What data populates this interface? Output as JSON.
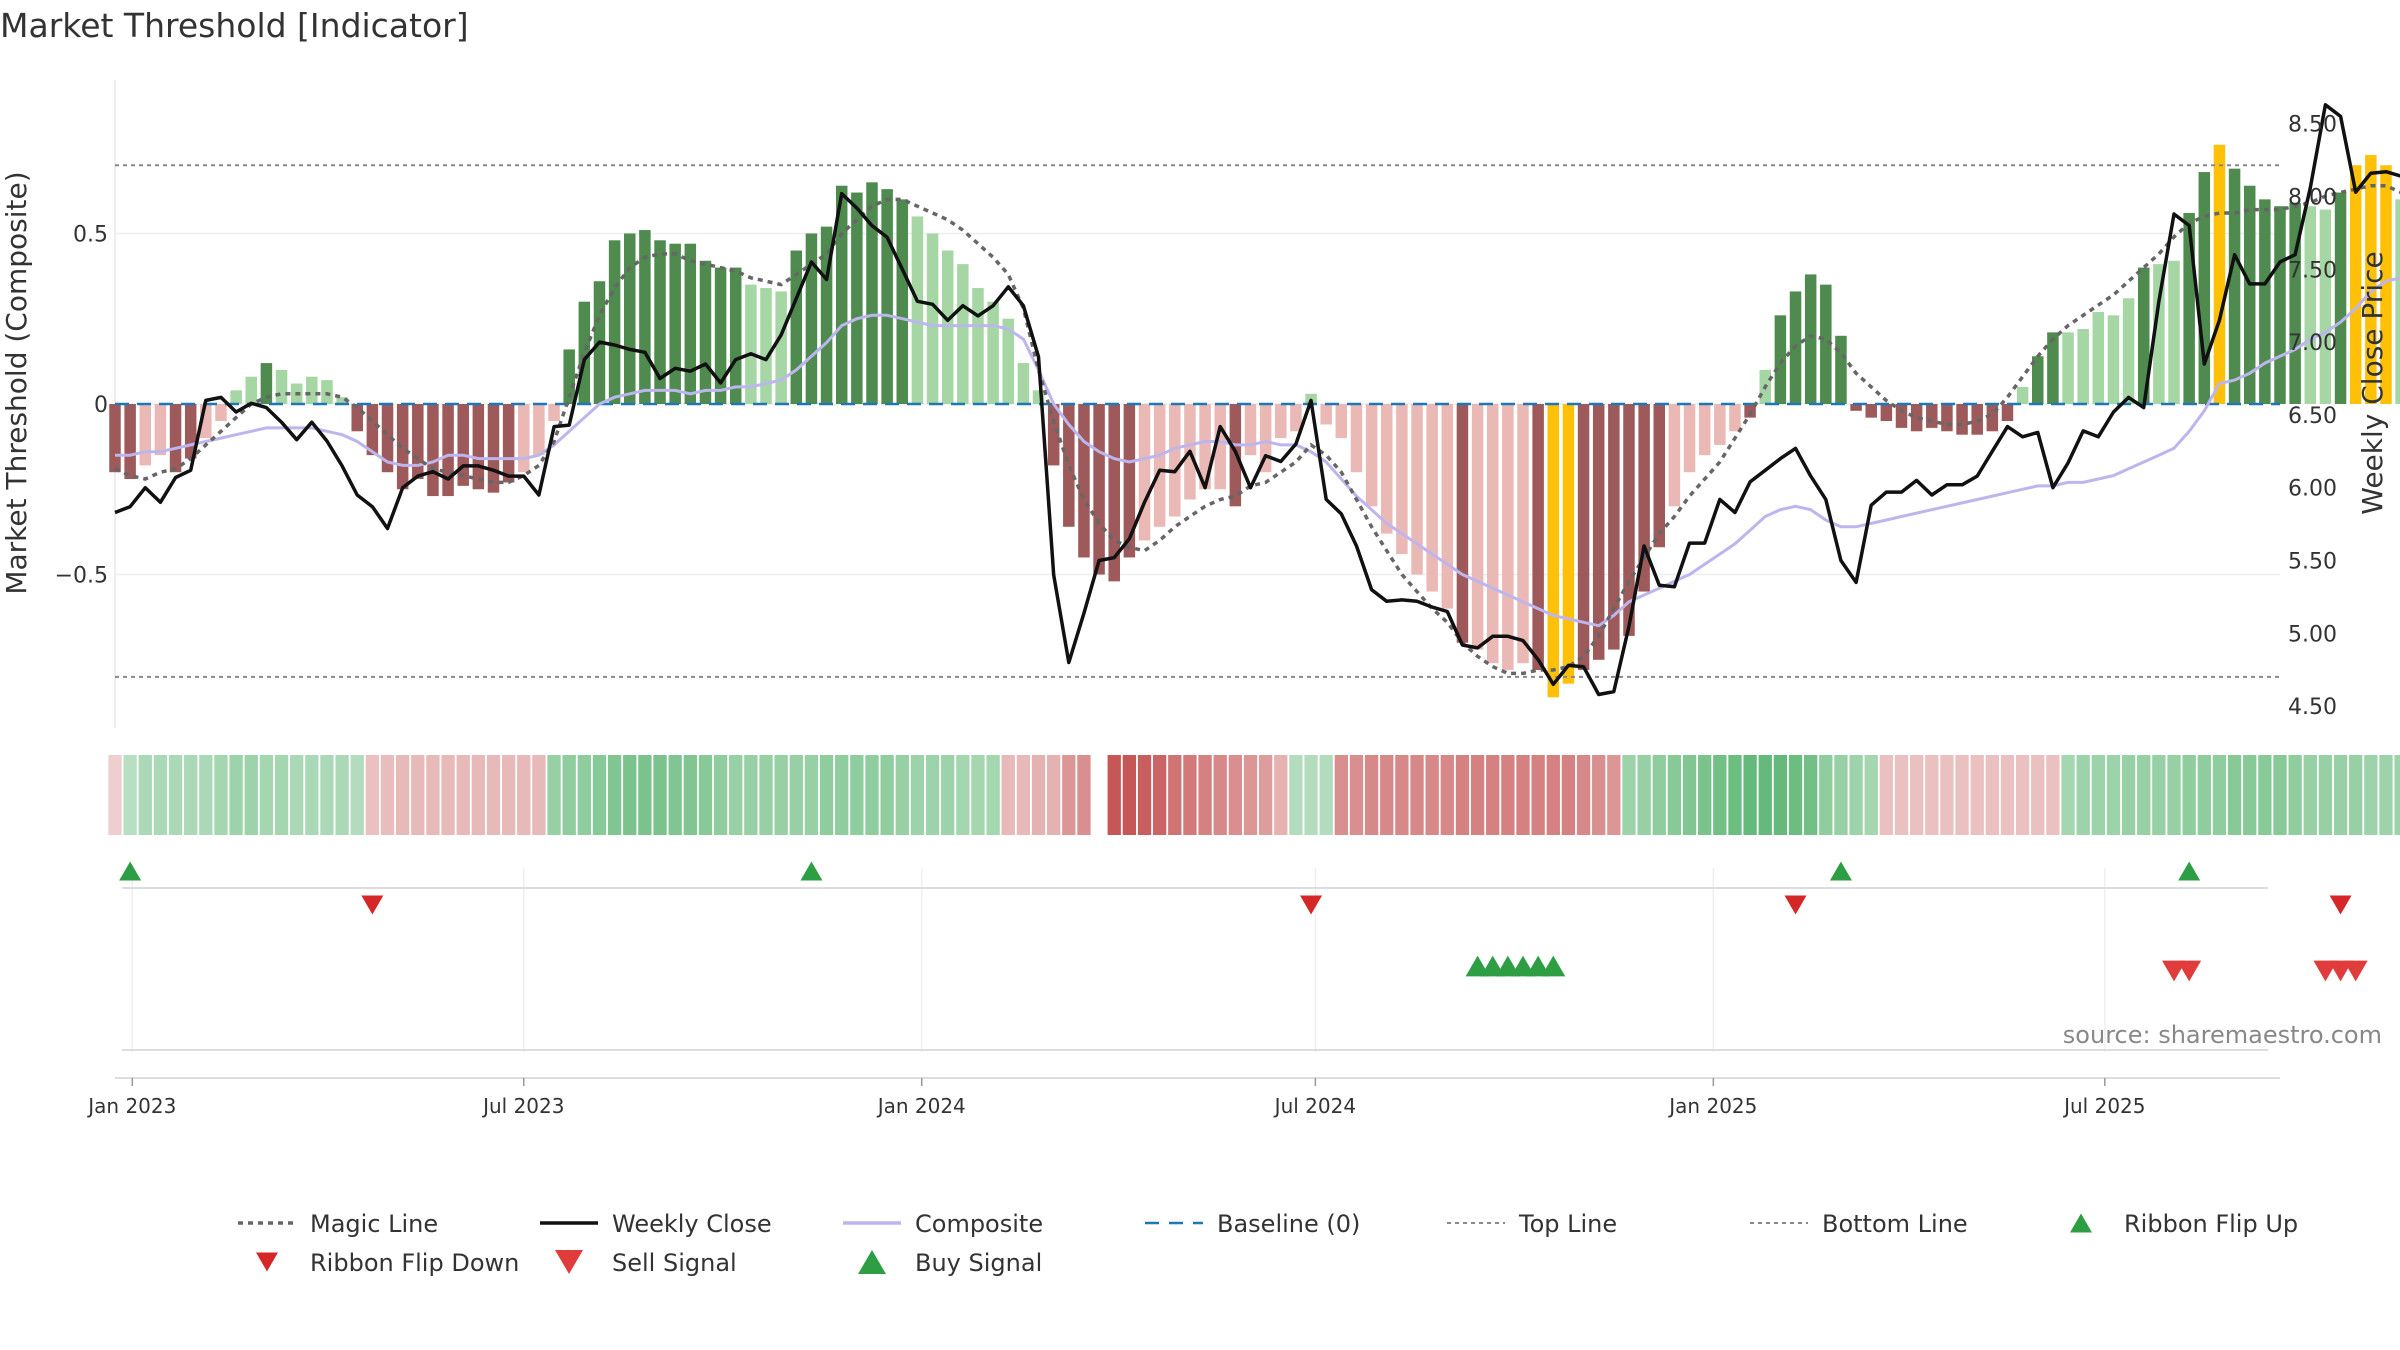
{
  "title": "Market Threshold [Indicator]",
  "source": "source: sharemaestro.com",
  "colors": {
    "pos_strong": "#4f8a4f",
    "pos_weak": "#a5d6a3",
    "neg_strong": "#9e5a5a",
    "neg_weak": "#ebb9b5",
    "extreme": "#ffc107",
    "close": "#111111",
    "magic": "#666666",
    "composite": "#bdb5ee",
    "baseline": "#1f77b4",
    "thresh": "#888888",
    "up": "#2e9e44",
    "down": "#d62728",
    "buy": "#2e9e44",
    "sell": "#e03c3c"
  },
  "chart_data": {
    "type": "bar",
    "title": "Market Threshold [Indicator]",
    "ylabel": "Market Threshold (Composite)",
    "y2label": "Weekly Close Price",
    "ylim": [
      -0.95,
      0.95
    ],
    "y2lim": [
      4.35,
      8.8
    ],
    "yticks": [
      {
        "v": 0.5,
        "t": "0.5"
      },
      {
        "v": 0,
        "t": "0"
      },
      {
        "v": -0.5,
        "t": "−0.5"
      }
    ],
    "y2ticks": [
      "4.50",
      "5.00",
      "5.50",
      "6.00",
      "6.50",
      "7.00",
      "7.50",
      "8.00",
      "8.50"
    ],
    "xlim": [
      "2022-12-24",
      "2025-09-20"
    ],
    "xticks": [
      {
        "date": "2023-01-01",
        "label": "Jan 2023"
      },
      {
        "date": "2023-07-01",
        "label": "Jul 2023"
      },
      {
        "date": "2024-01-01",
        "label": "Jan 2024"
      },
      {
        "date": "2024-07-01",
        "label": "Jul 2024"
      },
      {
        "date": "2025-01-01",
        "label": "Jan 2025"
      },
      {
        "date": "2025-07-01",
        "label": "Jul 2025"
      }
    ],
    "top_line": 0.7,
    "bottom_line": -0.8,
    "baseline": 0,
    "start_date": "2022-12-24",
    "composite_bars": [
      -0.2,
      -0.22,
      -0.18,
      -0.15,
      -0.2,
      -0.16,
      -0.1,
      -0.05,
      0.04,
      0.08,
      0.12,
      0.1,
      0.06,
      0.08,
      0.07,
      0.02,
      -0.08,
      -0.15,
      -0.2,
      -0.25,
      -0.22,
      -0.27,
      -0.27,
      -0.24,
      -0.25,
      -0.26,
      -0.23,
      -0.2,
      -0.15,
      -0.05,
      0.16,
      0.3,
      0.36,
      0.48,
      0.5,
      0.51,
      0.48,
      0.47,
      0.47,
      0.42,
      0.4,
      0.4,
      0.35,
      0.34,
      0.33,
      0.45,
      0.5,
      0.52,
      0.64,
      0.62,
      0.65,
      0.63,
      0.6,
      0.55,
      0.5,
      0.45,
      0.41,
      0.34,
      0.3,
      0.25,
      0.12,
      0.04,
      -0.18,
      -0.36,
      -0.45,
      -0.5,
      -0.52,
      -0.45,
      -0.4,
      -0.36,
      -0.33,
      -0.28,
      -0.25,
      -0.25,
      -0.3,
      -0.15,
      -0.2,
      -0.1,
      -0.08,
      0.03,
      -0.06,
      -0.1,
      -0.2,
      -0.3,
      -0.38,
      -0.44,
      -0.5,
      -0.55,
      -0.6,
      -0.7,
      -0.72,
      -0.76,
      -0.78,
      -0.76,
      -0.78,
      -0.86,
      -0.82,
      -0.78,
      -0.75,
      -0.72,
      -0.68,
      -0.55,
      -0.42,
      -0.3,
      -0.2,
      -0.15,
      -0.12,
      -0.08,
      -0.04,
      0.1,
      0.26,
      0.33,
      0.38,
      0.35,
      0.2,
      -0.02,
      -0.04,
      -0.05,
      -0.07,
      -0.08,
      -0.07,
      -0.08,
      -0.09,
      -0.09,
      -0.08,
      -0.05,
      0.05,
      0.14,
      0.21,
      0.21,
      0.22,
      0.27,
      0.26,
      0.31,
      0.4,
      0.41,
      0.42,
      0.56,
      0.68,
      0.76,
      0.69,
      0.64,
      0.6,
      0.58,
      0.59,
      0.58,
      0.57,
      0.62,
      0.7,
      0.73,
      0.7,
      0.6,
      0.58,
      0.53
    ],
    "magic_line": [
      -0.19,
      -0.21,
      -0.22,
      -0.2,
      -0.19,
      -0.16,
      -0.12,
      -0.08,
      -0.04,
      0.0,
      0.02,
      0.03,
      0.03,
      0.03,
      0.03,
      0.02,
      -0.01,
      -0.05,
      -0.09,
      -0.13,
      -0.16,
      -0.19,
      -0.2,
      -0.21,
      -0.22,
      -0.23,
      -0.23,
      -0.21,
      -0.18,
      -0.11,
      0.02,
      0.15,
      0.26,
      0.34,
      0.4,
      0.43,
      0.44,
      0.44,
      0.42,
      0.41,
      0.4,
      0.39,
      0.37,
      0.36,
      0.35,
      0.38,
      0.41,
      0.44,
      0.5,
      0.54,
      0.58,
      0.6,
      0.6,
      0.58,
      0.56,
      0.54,
      0.51,
      0.47,
      0.43,
      0.38,
      0.28,
      0.1,
      -0.05,
      -0.18,
      -0.28,
      -0.35,
      -0.4,
      -0.42,
      -0.43,
      -0.4,
      -0.36,
      -0.33,
      -0.3,
      -0.28,
      -0.27,
      -0.24,
      -0.23,
      -0.2,
      -0.17,
      -0.12,
      -0.15,
      -0.2,
      -0.28,
      -0.36,
      -0.43,
      -0.5,
      -0.55,
      -0.6,
      -0.64,
      -0.7,
      -0.74,
      -0.77,
      -0.79,
      -0.79,
      -0.78,
      -0.78,
      -0.77,
      -0.74,
      -0.68,
      -0.6,
      -0.52,
      -0.45,
      -0.38,
      -0.33,
      -0.27,
      -0.22,
      -0.17,
      -0.1,
      -0.03,
      0.05,
      0.12,
      0.17,
      0.2,
      0.19,
      0.15,
      0.09,
      0.05,
      0.01,
      -0.02,
      -0.04,
      -0.05,
      -0.06,
      -0.06,
      -0.05,
      -0.03,
      0.02,
      0.08,
      0.14,
      0.19,
      0.23,
      0.26,
      0.29,
      0.32,
      0.36,
      0.4,
      0.44,
      0.49,
      0.53,
      0.55,
      0.56,
      0.56,
      0.57,
      0.57,
      0.57,
      0.58,
      0.59,
      0.61,
      0.62,
      0.63,
      0.64,
      0.64,
      0.62
    ],
    "composite_line": [
      -0.15,
      -0.15,
      -0.14,
      -0.14,
      -0.13,
      -0.12,
      -0.11,
      -0.1,
      -0.09,
      -0.08,
      -0.07,
      -0.07,
      -0.07,
      -0.07,
      -0.08,
      -0.09,
      -0.11,
      -0.14,
      -0.17,
      -0.18,
      -0.18,
      -0.17,
      -0.15,
      -0.15,
      -0.16,
      -0.16,
      -0.16,
      -0.16,
      -0.15,
      -0.12,
      -0.08,
      -0.04,
      0.0,
      0.02,
      0.03,
      0.04,
      0.04,
      0.04,
      0.03,
      0.04,
      0.04,
      0.05,
      0.05,
      0.06,
      0.07,
      0.1,
      0.14,
      0.18,
      0.23,
      0.25,
      0.26,
      0.26,
      0.25,
      0.24,
      0.23,
      0.23,
      0.23,
      0.23,
      0.23,
      0.22,
      0.19,
      0.1,
      0.0,
      -0.06,
      -0.11,
      -0.14,
      -0.16,
      -0.17,
      -0.16,
      -0.15,
      -0.13,
      -0.12,
      -0.11,
      -0.11,
      -0.12,
      -0.12,
      -0.11,
      -0.12,
      -0.12,
      -0.14,
      -0.17,
      -0.22,
      -0.27,
      -0.31,
      -0.35,
      -0.38,
      -0.41,
      -0.44,
      -0.47,
      -0.5,
      -0.52,
      -0.54,
      -0.56,
      -0.58,
      -0.6,
      -0.62,
      -0.63,
      -0.64,
      -0.65,
      -0.62,
      -0.58,
      -0.56,
      -0.54,
      -0.52,
      -0.5,
      -0.47,
      -0.44,
      -0.41,
      -0.37,
      -0.33,
      -0.31,
      -0.3,
      -0.31,
      -0.34,
      -0.36,
      -0.36,
      -0.35,
      -0.34,
      -0.33,
      -0.32,
      -0.31,
      -0.3,
      -0.29,
      -0.28,
      -0.27,
      -0.26,
      -0.25,
      -0.24,
      -0.24,
      -0.23,
      -0.23,
      -0.22,
      -0.21,
      -0.19,
      -0.17,
      -0.15,
      -0.13,
      -0.08,
      -0.02,
      0.06,
      0.07,
      0.09,
      0.12,
      0.14,
      0.16,
      0.19,
      0.21,
      0.24,
      0.28,
      0.33,
      0.36,
      0.37,
      0.39,
      0.41
    ],
    "weekly_close": [
      5.83,
      5.87,
      6.0,
      5.9,
      6.07,
      6.12,
      6.6,
      6.62,
      6.52,
      6.58,
      6.55,
      6.45,
      6.33,
      6.45,
      6.32,
      6.15,
      5.95,
      5.87,
      5.72,
      6.0,
      6.08,
      6.11,
      6.06,
      6.15,
      6.15,
      6.12,
      6.08,
      6.08,
      5.95,
      6.42,
      6.43,
      6.88,
      7.0,
      6.98,
      6.95,
      6.93,
      6.75,
      6.82,
      6.8,
      6.85,
      6.72,
      6.88,
      6.92,
      6.88,
      7.05,
      7.3,
      7.55,
      7.43,
      8.02,
      7.92,
      7.8,
      7.72,
      7.5,
      7.28,
      7.26,
      7.15,
      7.25,
      7.18,
      7.25,
      7.38,
      7.25,
      6.9,
      5.4,
      4.8,
      5.14,
      5.5,
      5.52,
      5.65,
      5.9,
      6.12,
      6.11,
      6.25,
      6.0,
      6.42,
      6.25,
      6.0,
      6.22,
      6.18,
      6.3,
      6.6,
      5.92,
      5.82,
      5.6,
      5.3,
      5.22,
      5.23,
      5.22,
      5.18,
      5.15,
      4.92,
      4.9,
      4.98,
      4.98,
      4.95,
      4.82,
      4.65,
      4.78,
      4.77,
      4.58,
      4.6,
      5.05,
      5.6,
      5.33,
      5.32,
      5.62,
      5.62,
      5.92,
      5.83,
      6.04,
      6.12,
      6.2,
      6.27,
      6.08,
      5.92,
      5.5,
      5.35,
      5.88,
      5.97,
      5.97,
      6.05,
      5.95,
      6.02,
      6.02,
      6.08,
      6.25,
      6.42,
      6.35,
      6.38,
      6.0,
      6.17,
      6.39,
      6.35,
      6.52,
      6.62,
      6.55,
      7.28,
      7.88,
      7.8,
      6.85,
      7.15,
      7.6,
      7.4,
      7.4,
      7.55,
      7.6,
      8.06,
      8.63,
      8.55,
      8.03,
      8.16,
      8.17,
      8.14
    ],
    "ribbon": [
      -0.1,
      0.25,
      0.35,
      0.35,
      0.35,
      0.35,
      0.35,
      0.4,
      0.45,
      0.45,
      0.4,
      0.4,
      0.35,
      0.35,
      0.35,
      0.35,
      0.3,
      -0.2,
      -0.22,
      -0.25,
      -0.25,
      -0.25,
      -0.25,
      -0.25,
      -0.25,
      -0.25,
      -0.25,
      -0.25,
      -0.25,
      0.5,
      0.55,
      0.55,
      0.6,
      0.65,
      0.7,
      0.7,
      0.7,
      0.65,
      0.65,
      0.6,
      0.55,
      0.5,
      0.5,
      0.5,
      0.5,
      0.5,
      0.5,
      0.55,
      0.55,
      0.55,
      0.55,
      0.55,
      0.5,
      0.45,
      0.45,
      0.45,
      0.4,
      0.4,
      0.4,
      -0.25,
      -0.25,
      -0.3,
      -0.3,
      -0.5,
      -0.55,
      null,
      -0.95,
      -0.95,
      -0.9,
      -0.85,
      -0.75,
      -0.7,
      -0.65,
      -0.6,
      -0.55,
      -0.5,
      -0.45,
      -0.3,
      0.3,
      0.3,
      0.3,
      -0.55,
      -0.55,
      -0.6,
      -0.6,
      -0.6,
      -0.6,
      -0.6,
      -0.6,
      -0.65,
      -0.65,
      -0.65,
      -0.65,
      -0.65,
      -0.65,
      -0.65,
      -0.65,
      -0.6,
      -0.55,
      -0.5,
      0.45,
      0.5,
      0.55,
      0.6,
      0.65,
      0.7,
      0.75,
      0.8,
      0.85,
      0.85,
      0.85,
      0.8,
      0.75,
      0.55,
      0.5,
      0.45,
      0.4,
      -0.2,
      -0.2,
      -0.2,
      -0.2,
      -0.2,
      -0.2,
      -0.2,
      -0.2,
      -0.2,
      -0.2,
      -0.2,
      -0.2,
      0.4,
      0.45,
      0.45,
      0.45,
      0.5,
      0.5,
      0.5,
      0.5,
      0.55,
      0.55,
      0.55,
      0.6,
      0.6,
      0.6,
      0.6,
      0.55,
      0.5,
      0.5,
      0.5,
      0.5,
      0.45,
      0.45,
      0.45,
      0.45,
      0.4,
      0.4,
      0.35,
      0.35
    ],
    "ribbon_flip_up_weeks": [
      1,
      46,
      114,
      137,
      164
    ],
    "ribbon_flip_down_weeks": [
      17,
      79,
      111,
      147
    ],
    "buy_signal_weeks": [
      90,
      91,
      92,
      93,
      94,
      95
    ],
    "sell_signal_weeks": [
      136,
      137,
      146,
      147,
      148
    ],
    "legend": [
      {
        "label": "Magic Line",
        "kind": "dotted"
      },
      {
        "label": "Weekly Close",
        "kind": "solid"
      },
      {
        "label": "Composite",
        "kind": "composite"
      },
      {
        "label": "Baseline (0)",
        "kind": "dashed"
      },
      {
        "label": "Top Line",
        "kind": "thin-dashed"
      },
      {
        "label": "Bottom Line",
        "kind": "thin-dashed"
      },
      {
        "label": "Ribbon Flip Up",
        "kind": "tri-up-small"
      },
      {
        "label": "Ribbon Flip Down",
        "kind": "tri-down-small"
      },
      {
        "label": "Sell Signal",
        "kind": "tri-down-big"
      },
      {
        "label": "Buy Signal",
        "kind": "tri-up-big"
      }
    ]
  }
}
